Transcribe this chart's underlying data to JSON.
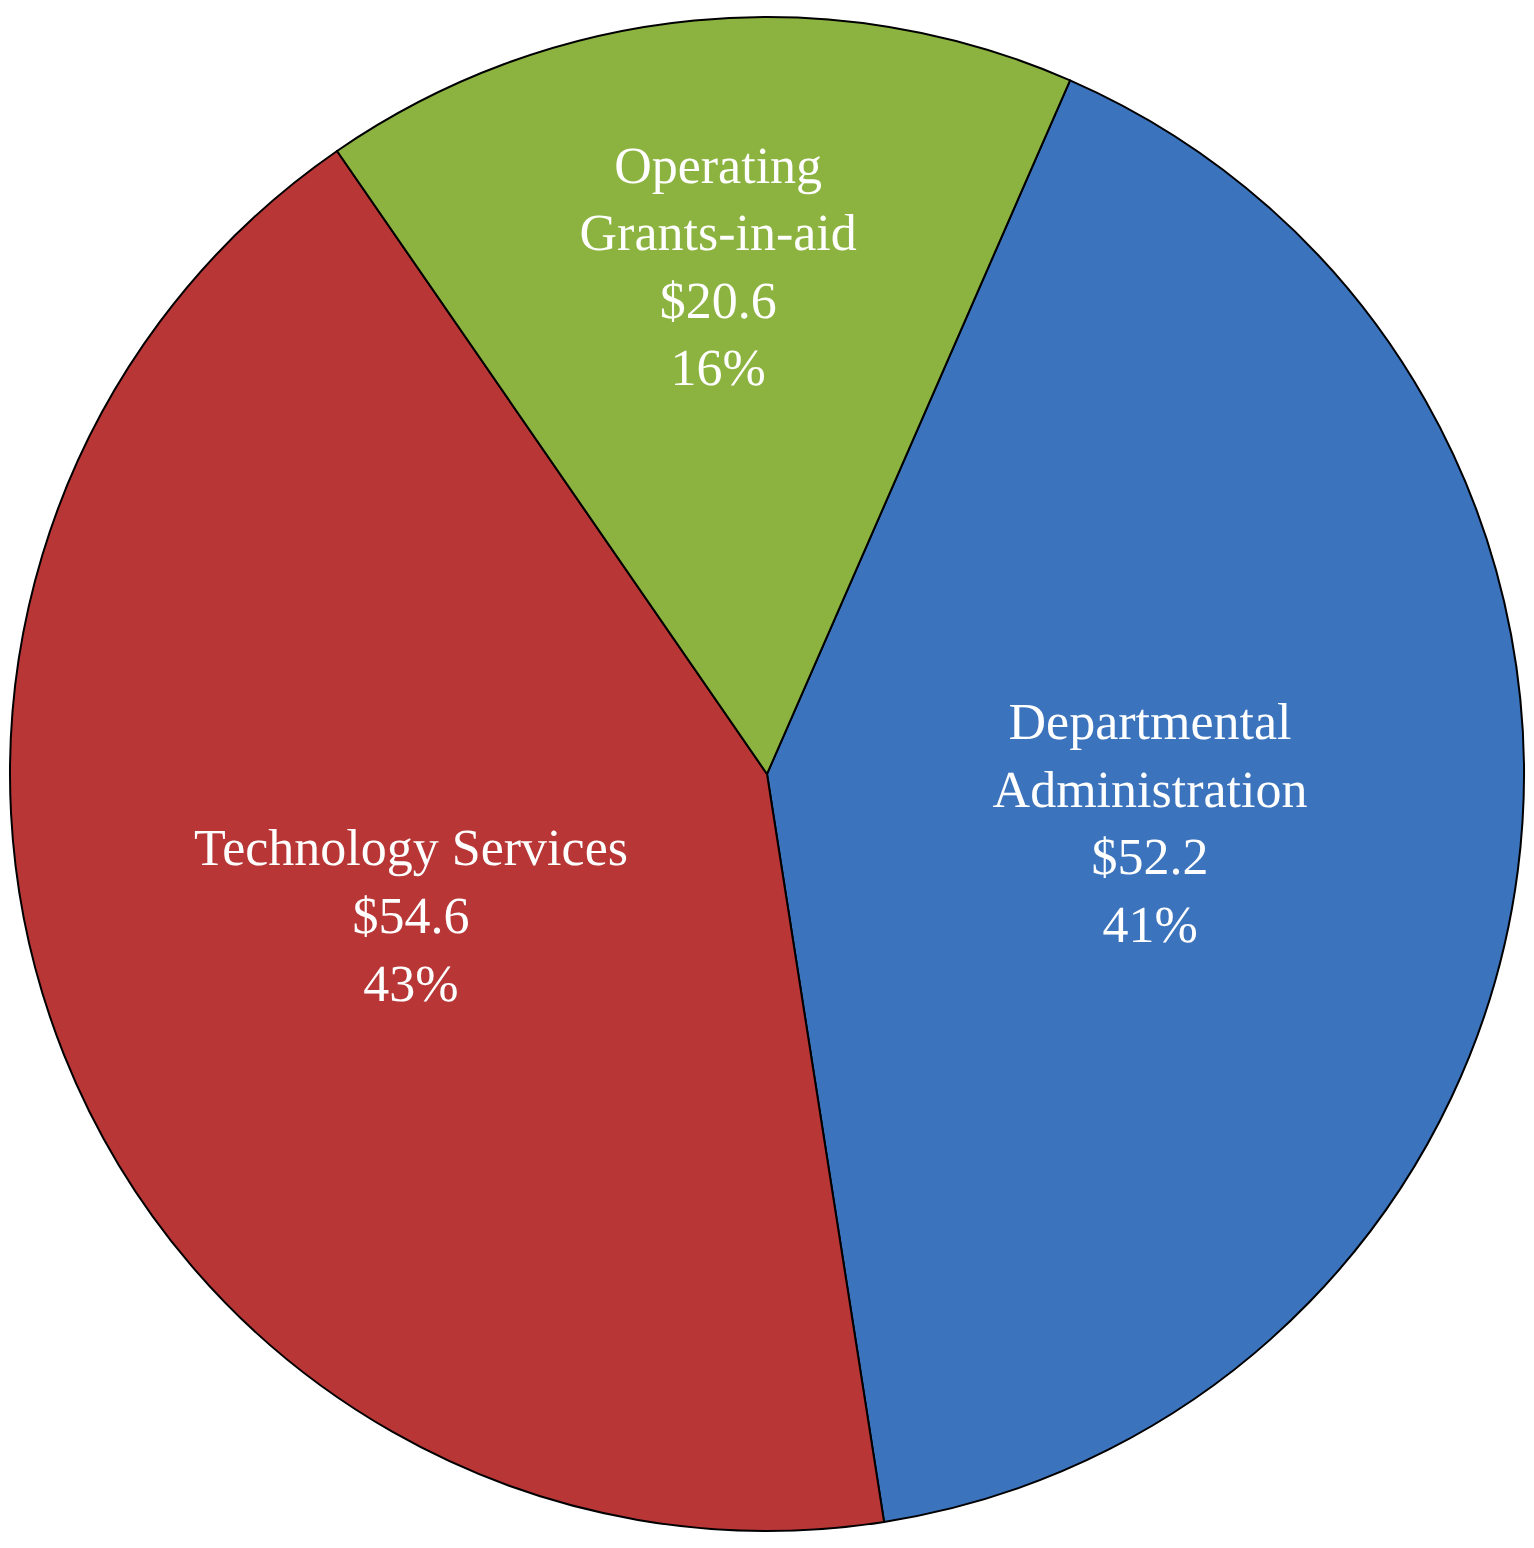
{
  "chart_data": {
    "type": "pie",
    "categories": [
      "Departmental\nAdministration",
      "Technology Services",
      "Operating\nGrants-in-aid"
    ],
    "values": [
      52.2,
      54.6,
      20.6
    ],
    "colors": [
      "#3b73bd",
      "#b83636",
      "#8cb340"
    ],
    "value_labels": [
      "$52.2\n41%",
      "$54.6\n43%",
      "$20.6\n16%"
    ],
    "legend": false
  }
}
